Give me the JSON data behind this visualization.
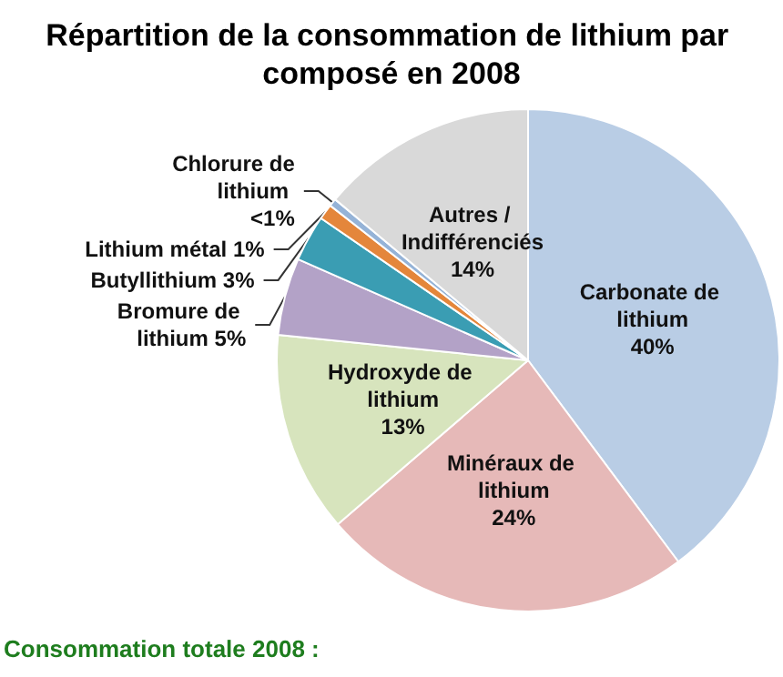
{
  "chart_data": {
    "type": "pie",
    "title": "Répartition de la consommation de lithium par composé en 2008",
    "categories": [
      "Carbonate de lithium",
      "Minéraux de lithium",
      "Hydroxyde de lithium",
      "Bromure de lithium",
      "Butyllithium",
      "Lithium métal",
      "Chlorure de lithium",
      "Autres / Indifférenciés"
    ],
    "values": [
      40,
      24,
      13,
      5,
      3,
      1,
      0.5,
      14
    ],
    "value_labels": [
      "40%",
      "24%",
      "13%",
      "5%",
      "3%",
      "1%",
      "<1%",
      "14%"
    ],
    "colors": [
      "#b9cde5",
      "#e6b9b8",
      "#d7e4bd",
      "#b3a2c7",
      "#3a9db3",
      "#e4863b",
      "#95b3d7",
      "#d9d9d9"
    ],
    "annotations": [
      "Consommation totale 2008 :"
    ],
    "legend": false
  }
}
